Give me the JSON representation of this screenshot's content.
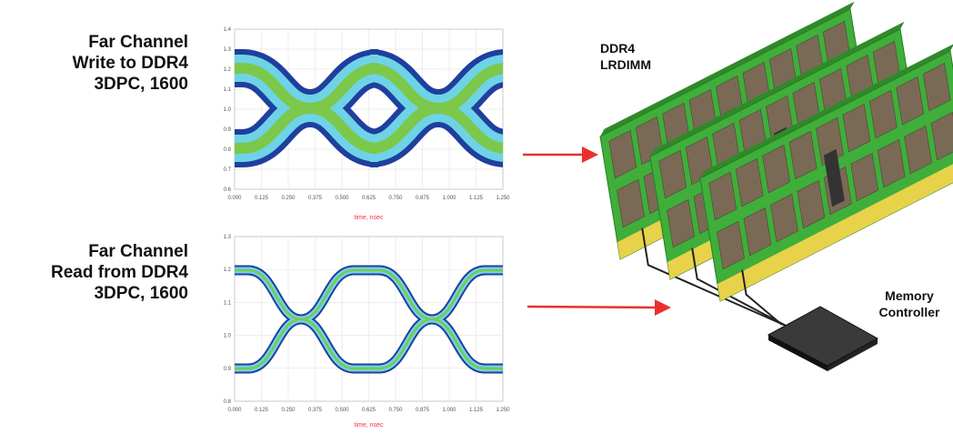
{
  "labels": {
    "write": [
      "Far Channel",
      "Write to DDR4",
      "3DPC, 1600"
    ],
    "read": [
      "Far Channel",
      "Read from DDR4",
      "3DPC, 1600"
    ]
  },
  "plots": [
    {
      "yticks": [
        "1.4",
        "1.3",
        "1.2",
        "1.1",
        "1.0",
        "0.9",
        "0.8",
        "0.7",
        "0.6"
      ],
      "xticks": [
        "0.000",
        "0.125",
        "0.250",
        "0.375",
        "0.500",
        "0.625",
        "0.750",
        "0.875",
        "1.000",
        "1.125",
        "1.250"
      ],
      "xlabel": "time, nsec"
    },
    {
      "yticks": [
        "1.3",
        "1.2",
        "1.1",
        "1.0",
        "0.9",
        "0.8"
      ],
      "xticks": [
        "0.000",
        "0.125",
        "0.250",
        "0.375",
        "0.500",
        "0.625",
        "0.750",
        "0.875",
        "1.000",
        "1.125",
        "1.250"
      ],
      "xlabel": "time, nsec"
    }
  ],
  "dimm_label": [
    "DDR4",
    "LRDIMM"
  ],
  "controller_label": [
    "Memory",
    "Controller"
  ]
}
